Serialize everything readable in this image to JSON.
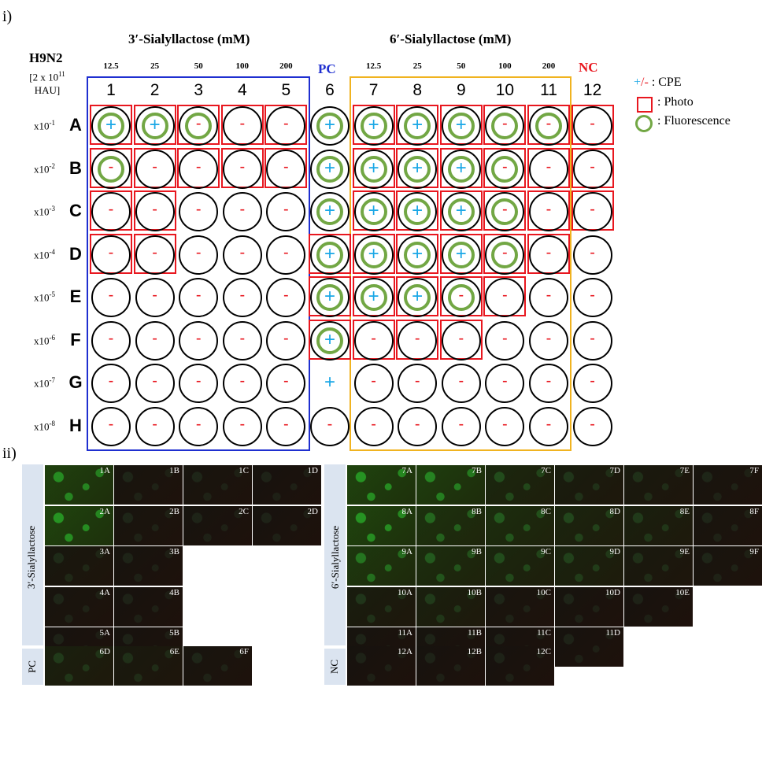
{
  "panel_i_label": "i)",
  "panel_ii_label": "ii)",
  "virus": "H9N2",
  "virus_dose_line1": "[2 x 10",
  "virus_dose_exp": "11",
  "virus_dose_line2": "HAU]",
  "group_3sl": "3′-Sialyllactose (mM)",
  "group_6sl": "6′-Sialyllactose (mM)",
  "pc": "PC",
  "nc": "NC",
  "concentrations_3sl": [
    "12.5",
    "25",
    "50",
    "100",
    "200"
  ],
  "concentrations_6sl": [
    "12.5",
    "25",
    "50",
    "100",
    "200"
  ],
  "columns": [
    "1",
    "2",
    "3",
    "4",
    "5",
    "6",
    "7",
    "8",
    "9",
    "10",
    "11",
    "12"
  ],
  "rows": [
    "A",
    "B",
    "C",
    "D",
    "E",
    "F",
    "G",
    "H"
  ],
  "dilution_base": "x10",
  "dilutions": [
    "-1",
    "-2",
    "-3",
    "-4",
    "-5",
    "-6",
    "-7",
    "-8"
  ],
  "legend": {
    "cpe_symbol": "+/-",
    "cpe": ": CPE",
    "photo": ": Photo",
    "fluorescence": ": Fluorescence"
  },
  "colors": {
    "blue_box": "#1f2fd0",
    "orange_box": "#f0b320",
    "photo_red": "#e8171f",
    "fluor_green": "#72a744",
    "plus_blue": "#1aa7e6",
    "minus_red": "#e8171f",
    "pc_blue": "#1f2fd0",
    "nc_red": "#e8171f"
  },
  "plate": [
    [
      "+",
      "+",
      "-",
      "-",
      "-",
      "+",
      "+",
      "+",
      "+",
      "-",
      "-",
      "-"
    ],
    [
      "-",
      "-",
      "-",
      "-",
      "-",
      "+",
      "+",
      "+",
      "+",
      "-",
      "-",
      "-"
    ],
    [
      "-",
      "-",
      "-",
      "-",
      "-",
      "+",
      "+",
      "+",
      "+",
      "-",
      "-",
      "-"
    ],
    [
      "-",
      "-",
      "-",
      "-",
      "-",
      "+",
      "+",
      "+",
      "+",
      "-",
      "-",
      "-"
    ],
    [
      "-",
      "-",
      "-",
      "-",
      "-",
      "+",
      "+",
      "+",
      "-",
      "-",
      "-",
      "-"
    ],
    [
      "-",
      "-",
      "-",
      "-",
      "-",
      "+",
      "-",
      "-",
      "-",
      "-",
      "-",
      "-"
    ],
    [
      "-",
      "-",
      "-",
      "-",
      "-",
      "+",
      "-",
      "-",
      "-",
      "-",
      "-",
      "-"
    ],
    [
      "-",
      "-",
      "-",
      "-",
      "-",
      "-",
      "-",
      "-",
      "-",
      "-",
      "-",
      "-"
    ]
  ],
  "fluorescence": [
    [
      1,
      1,
      1,
      0,
      0,
      1,
      1,
      1,
      1,
      1,
      1,
      0
    ],
    [
      1,
      0,
      0,
      0,
      0,
      1,
      1,
      1,
      1,
      1,
      0,
      0
    ],
    [
      0,
      0,
      0,
      0,
      0,
      1,
      1,
      1,
      1,
      1,
      0,
      0
    ],
    [
      0,
      0,
      0,
      0,
      0,
      1,
      1,
      1,
      1,
      1,
      0,
      0
    ],
    [
      0,
      0,
      0,
      0,
      0,
      1,
      1,
      1,
      1,
      0,
      0,
      0
    ],
    [
      0,
      0,
      0,
      0,
      0,
      1,
      0,
      0,
      0,
      0,
      0,
      0
    ],
    [
      0,
      0,
      0,
      0,
      0,
      0,
      0,
      0,
      0,
      0,
      0,
      0
    ],
    [
      0,
      0,
      0,
      0,
      0,
      0,
      0,
      0,
      0,
      0,
      0,
      0
    ]
  ],
  "photo": [
    [
      1,
      1,
      1,
      1,
      1,
      0,
      1,
      1,
      1,
      1,
      1,
      1
    ],
    [
      1,
      1,
      1,
      1,
      1,
      0,
      1,
      1,
      1,
      1,
      1,
      1
    ],
    [
      1,
      1,
      0,
      0,
      0,
      0,
      1,
      1,
      1,
      1,
      1,
      1
    ],
    [
      1,
      1,
      0,
      0,
      0,
      1,
      1,
      1,
      1,
      1,
      1,
      0
    ],
    [
      0,
      0,
      0,
      0,
      0,
      1,
      1,
      1,
      1,
      1,
      0,
      0
    ],
    [
      0,
      0,
      0,
      0,
      0,
      1,
      1,
      1,
      1,
      0,
      0,
      0
    ],
    [
      0,
      0,
      0,
      0,
      0,
      0,
      0,
      0,
      0,
      0,
      0,
      0
    ],
    [
      0,
      0,
      0,
      0,
      0,
      0,
      0,
      0,
      0,
      0,
      0,
      0
    ]
  ],
  "micrographs": {
    "left_group": "3′-Sialyllactose",
    "left_pc": "PC",
    "right_group": "6′-Sialyllactose",
    "right_nc": "NC",
    "left_rows": [
      [
        {
          "id": "1A",
          "g": 0.85
        },
        {
          "id": "1B",
          "g": 0.05
        },
        {
          "id": "1C",
          "g": 0.05
        },
        {
          "id": "1D",
          "g": 0.02
        }
      ],
      [
        {
          "id": "2A",
          "g": 0.9
        },
        {
          "id": "2B",
          "g": 0.05
        },
        {
          "id": "2C",
          "g": 0.03
        },
        {
          "id": "2D",
          "g": 0.02
        }
      ],
      [
        {
          "id": "3A",
          "g": 0.1
        },
        {
          "id": "3B",
          "g": 0.03
        }
      ],
      [
        {
          "id": "4A",
          "g": 0.05
        },
        {
          "id": "4B",
          "g": 0.02
        }
      ],
      [
        {
          "id": "5A",
          "g": 0.02
        },
        {
          "id": "5B",
          "g": 0.02
        }
      ]
    ],
    "left_pc_row": [
      {
        "id": "6D",
        "g": 0.25
      },
      {
        "id": "6E",
        "g": 0.15
      },
      {
        "id": "6F",
        "g": 0.05
      }
    ],
    "right_rows": [
      [
        {
          "id": "7A",
          "g": 0.9
        },
        {
          "id": "7B",
          "g": 0.8
        },
        {
          "id": "7C",
          "g": 0.4
        },
        {
          "id": "7D",
          "g": 0.2
        },
        {
          "id": "7E",
          "g": 0.15
        },
        {
          "id": "7F",
          "g": 0.05
        }
      ],
      [
        {
          "id": "8A",
          "g": 0.9
        },
        {
          "id": "8B",
          "g": 0.6
        },
        {
          "id": "8C",
          "g": 0.5
        },
        {
          "id": "8D",
          "g": 0.35
        },
        {
          "id": "8E",
          "g": 0.25
        },
        {
          "id": "8F",
          "g": 0.05
        }
      ],
      [
        {
          "id": "9A",
          "g": 0.7
        },
        {
          "id": "9B",
          "g": 0.5
        },
        {
          "id": "9C",
          "g": 0.4
        },
        {
          "id": "9D",
          "g": 0.3
        },
        {
          "id": "9E",
          "g": 0.15
        },
        {
          "id": "9F",
          "g": 0.05
        }
      ],
      [
        {
          "id": "10A",
          "g": 0.2
        },
        {
          "id": "10B",
          "g": 0.25
        },
        {
          "id": "10C",
          "g": 0.05
        },
        {
          "id": "10D",
          "g": 0.03
        },
        {
          "id": "10E",
          "g": 0.02
        }
      ],
      [
        {
          "id": "11A",
          "g": 0.03
        },
        {
          "id": "11B",
          "g": 0.03
        },
        {
          "id": "11C",
          "g": 0.02
        },
        {
          "id": "11D",
          "g": 0.02
        }
      ]
    ],
    "right_nc_row": [
      {
        "id": "12A",
        "g": 0.02
      },
      {
        "id": "12B",
        "g": 0.02
      },
      {
        "id": "12C",
        "g": 0.02
      }
    ]
  }
}
